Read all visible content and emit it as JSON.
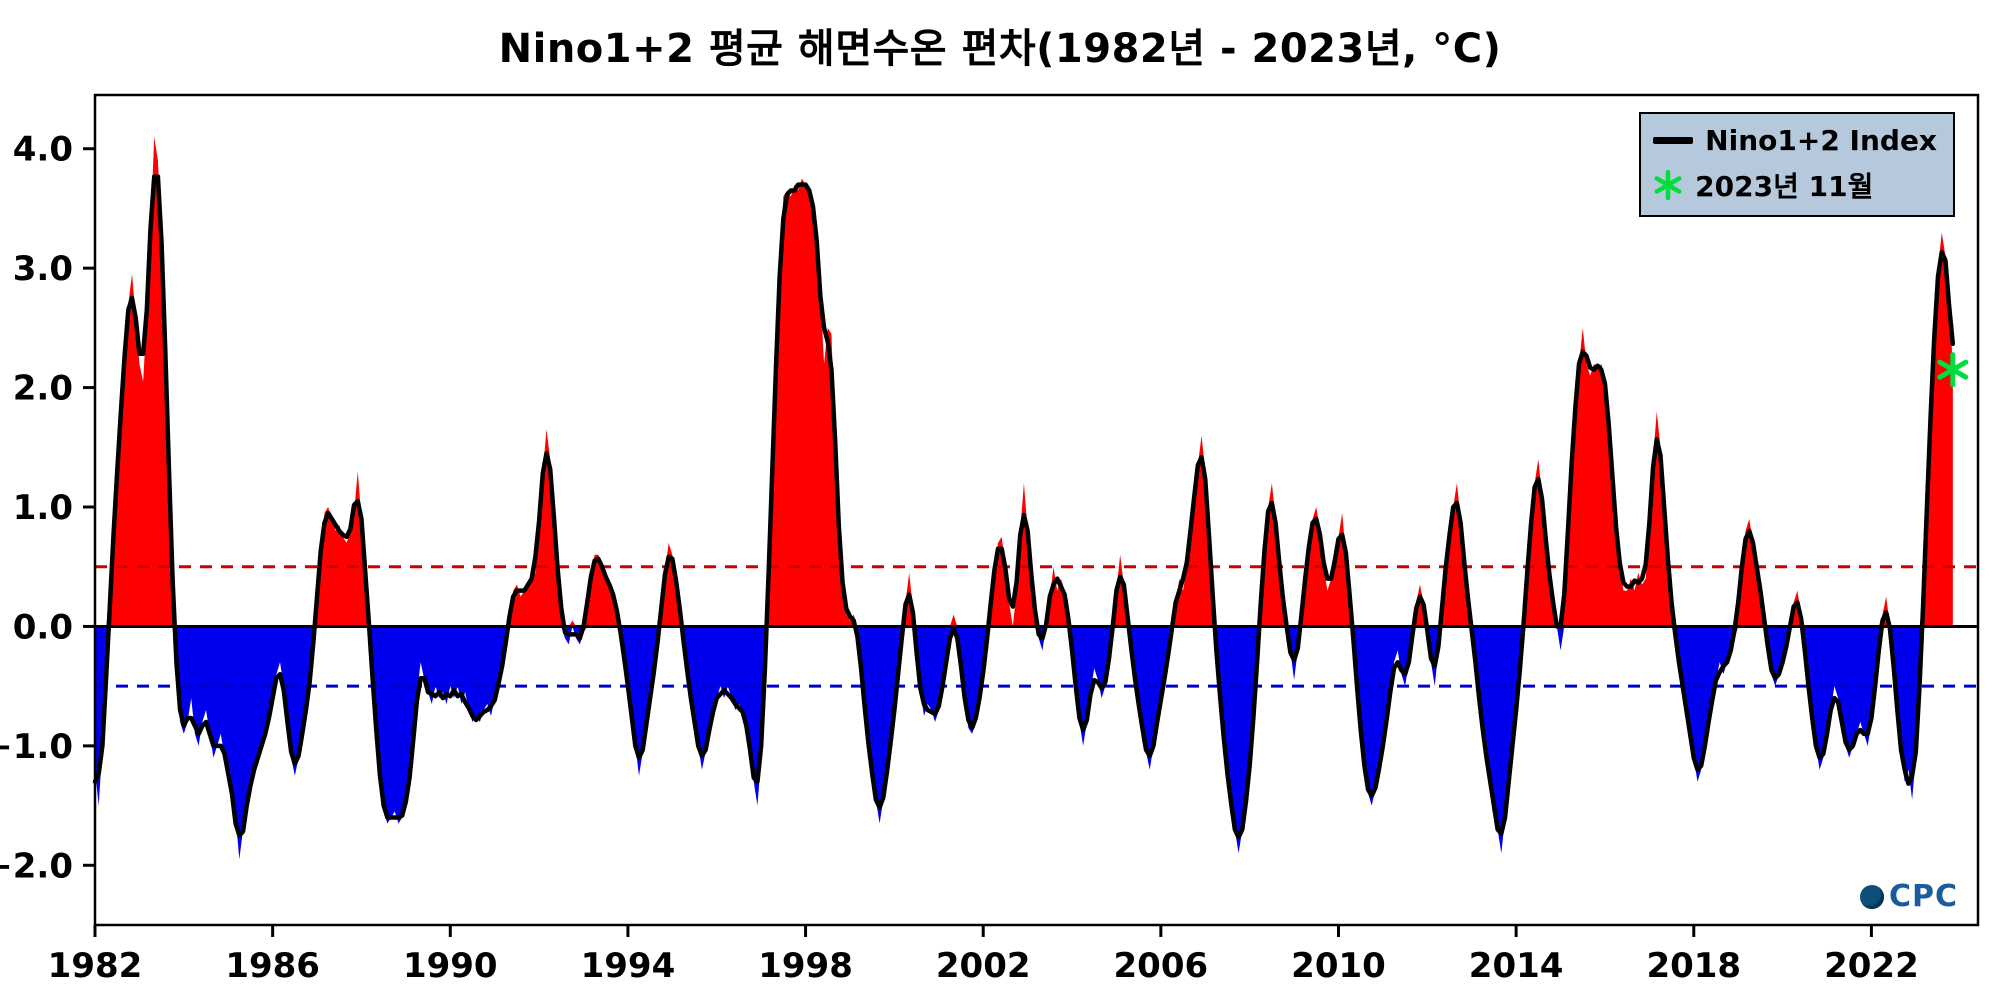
{
  "chart_data": {
    "type": "area",
    "title": "Nino1+2 평균 해면수온 편차(1982년 - 2023년, °C)",
    "xlabel": "",
    "ylabel": "",
    "x_start_year": 1982,
    "x_start_month": 1,
    "frequency": "monthly",
    "x_end": "2023-11",
    "xlim": [
      1982.0,
      2024.4
    ],
    "ylim": [
      -2.5,
      4.45
    ],
    "x_ticks": [
      1982,
      1986,
      1990,
      1994,
      1998,
      2002,
      2006,
      2010,
      2014,
      2018,
      2022
    ],
    "y_ticks": [
      -2.0,
      -1.0,
      0.0,
      1.0,
      2.0,
      3.0,
      4.0
    ],
    "grid": false,
    "legend_position": "top-right",
    "zero_line": 0.0,
    "thresholds": {
      "warm": 0.5,
      "cold": -0.5
    },
    "colors": {
      "positive_fill": "#ff0000",
      "negative_fill": "#0000ee",
      "line": "#000000",
      "warm_dash": "#cc0000",
      "cold_dash": "#0000cc",
      "marker": "#00dd3c",
      "legend_bg": "#b6c9dc"
    },
    "legend": [
      {
        "label": "Nino1+2 Index",
        "marker": "line",
        "color": "#000000"
      },
      {
        "label": "2023년 11월",
        "marker": "asterisk",
        "color": "#00dd3c"
      }
    ],
    "last_point": {
      "date": "2023-11",
      "value": 2.15
    },
    "values": [
      -1.2,
      -1.5,
      -1.0,
      -0.5,
      0.2,
      0.8,
      1.3,
      1.8,
      2.3,
      2.7,
      2.95,
      2.6,
      2.2,
      2.05,
      2.6,
      3.3,
      4.1,
      3.9,
      3.3,
      2.4,
      1.2,
      0.3,
      -0.4,
      -0.8,
      -0.9,
      -0.8,
      -0.6,
      -0.9,
      -1.0,
      -0.8,
      -0.7,
      -0.9,
      -1.1,
      -1.0,
      -0.9,
      -1.1,
      -1.2,
      -1.4,
      -1.6,
      -1.95,
      -1.7,
      -1.5,
      -1.3,
      -1.2,
      -1.1,
      -1.0,
      -0.9,
      -0.8,
      -0.6,
      -0.4,
      -0.3,
      -0.5,
      -0.8,
      -1.1,
      -1.25,
      -1.1,
      -0.9,
      -0.7,
      -0.5,
      -0.2,
      0.3,
      0.65,
      0.95,
      1.0,
      0.9,
      0.8,
      0.85,
      0.75,
      0.7,
      0.8,
      0.95,
      1.3,
      0.9,
      0.5,
      0.0,
      -0.4,
      -0.9,
      -1.3,
      -1.55,
      -1.65,
      -1.6,
      -1.55,
      -1.65,
      -1.6,
      -1.5,
      -1.3,
      -1.0,
      -0.55,
      -0.3,
      -0.45,
      -0.55,
      -0.65,
      -0.5,
      -0.6,
      -0.55,
      -0.65,
      -0.5,
      -0.6,
      -0.5,
      -0.65,
      -0.55,
      -0.7,
      -0.8,
      -0.75,
      -0.8,
      -0.7,
      -0.65,
      -0.75,
      -0.6,
      -0.5,
      -0.35,
      -0.15,
      0.1,
      0.3,
      0.35,
      0.25,
      0.3,
      0.35,
      0.4,
      0.45,
      0.9,
      1.3,
      1.65,
      1.4,
      0.9,
      0.45,
      0.1,
      -0.1,
      -0.15,
      0.05,
      -0.1,
      -0.15,
      -0.05,
      0.2,
      0.45,
      0.6,
      0.6,
      0.5,
      0.4,
      0.35,
      0.3,
      0.15,
      -0.05,
      -0.25,
      -0.5,
      -0.75,
      -1.0,
      -1.25,
      -1.05,
      -0.8,
      -0.6,
      -0.4,
      -0.15,
      0.15,
      0.45,
      0.7,
      0.6,
      0.4,
      0.15,
      -0.1,
      -0.4,
      -0.6,
      -0.8,
      -1.0,
      -1.2,
      -1.05,
      -0.85,
      -0.7,
      -0.6,
      -0.5,
      -0.6,
      -0.5,
      -0.6,
      -0.7,
      -0.65,
      -0.7,
      -0.8,
      -1.0,
      -1.3,
      -1.5,
      -1.1,
      -0.4,
      0.4,
      1.3,
      2.2,
      3.0,
      3.6,
      3.65,
      3.6,
      3.7,
      3.65,
      3.75,
      3.7,
      3.65,
      3.6,
      3.3,
      2.8,
      2.2,
      2.5,
      2.45,
      1.5,
      0.7,
      0.3,
      0.1,
      0.05,
      0.1,
      0.0,
      -0.35,
      -0.7,
      -1.0,
      -1.25,
      -1.45,
      -1.65,
      -1.45,
      -1.2,
      -1.0,
      -0.7,
      -0.4,
      -0.1,
      0.2,
      0.45,
      0.15,
      -0.25,
      -0.55,
      -0.75,
      -0.65,
      -0.7,
      -0.8,
      -0.7,
      -0.5,
      -0.3,
      -0.1,
      0.1,
      -0.05,
      -0.35,
      -0.6,
      -0.85,
      -0.9,
      -0.8,
      -0.6,
      -0.4,
      -0.15,
      0.2,
      0.5,
      0.7,
      0.75,
      0.5,
      0.2,
      0.0,
      0.3,
      0.8,
      1.2,
      0.8,
      0.4,
      0.1,
      -0.1,
      -0.2,
      0.0,
      0.25,
      0.5,
      0.3,
      0.4,
      0.3,
      0.1,
      -0.2,
      -0.5,
      -0.8,
      -1.0,
      -0.8,
      -0.55,
      -0.35,
      -0.45,
      -0.6,
      -0.5,
      -0.3,
      0.0,
      0.3,
      0.6,
      0.35,
      0.1,
      -0.2,
      -0.45,
      -0.65,
      -0.85,
      -1.05,
      -1.2,
      -1.0,
      -0.8,
      -0.6,
      -0.45,
      -0.25,
      0.0,
      0.2,
      0.4,
      0.3,
      0.5,
      0.8,
      1.1,
      1.35,
      1.6,
      1.3,
      0.8,
      0.2,
      -0.2,
      -0.6,
      -0.95,
      -1.25,
      -1.5,
      -1.7,
      -1.9,
      -1.7,
      -1.5,
      -1.2,
      -0.8,
      -0.3,
      0.2,
      0.7,
      1.0,
      1.2,
      0.9,
      0.5,
      0.2,
      0.0,
      -0.2,
      -0.45,
      -0.2,
      0.1,
      0.4,
      0.7,
      0.9,
      1.0,
      0.8,
      0.5,
      0.3,
      0.4,
      0.5,
      0.75,
      0.95,
      0.6,
      0.3,
      -0.1,
      -0.5,
      -0.9,
      -1.2,
      -1.4,
      -1.5,
      -1.35,
      -1.2,
      -1.0,
      -0.8,
      -0.55,
      -0.3,
      -0.2,
      -0.4,
      -0.5,
      -0.3,
      -0.1,
      0.2,
      0.35,
      0.2,
      0.0,
      -0.3,
      -0.5,
      -0.2,
      0.2,
      0.5,
      0.8,
      1.0,
      1.2,
      0.9,
      0.5,
      0.2,
      0.0,
      -0.3,
      -0.6,
      -0.9,
      -1.1,
      -1.3,
      -1.5,
      -1.7,
      -1.9,
      -1.6,
      -1.3,
      -1.0,
      -0.7,
      -0.4,
      0.0,
      0.45,
      0.9,
      1.2,
      1.4,
      1.1,
      0.7,
      0.4,
      0.2,
      0.0,
      -0.2,
      0.2,
      0.8,
      1.4,
      1.9,
      2.2,
      2.5,
      2.2,
      2.1,
      2.2,
      2.15,
      2.2,
      2.1,
      1.8,
      1.2,
      0.8,
      0.5,
      0.3,
      0.3,
      0.4,
      0.3,
      0.45,
      0.35,
      0.4,
      0.8,
      1.4,
      1.8,
      1.5,
      1.0,
      0.5,
      0.2,
      -0.1,
      -0.3,
      -0.5,
      -0.7,
      -0.9,
      -1.1,
      -1.3,
      -1.2,
      -1.0,
      -0.8,
      -0.6,
      -0.45,
      -0.3,
      -0.4,
      -0.3,
      -0.2,
      -0.1,
      0.2,
      0.5,
      0.8,
      0.9,
      0.7,
      0.5,
      0.3,
      0.1,
      -0.2,
      -0.4,
      -0.5,
      -0.4,
      -0.3,
      -0.2,
      0.0,
      0.2,
      0.3,
      0.1,
      -0.2,
      -0.5,
      -0.8,
      -1.0,
      -1.2,
      -1.1,
      -0.9,
      -0.7,
      -0.5,
      -0.6,
      -0.8,
      -1.0,
      -1.1,
      -1.0,
      -0.9,
      -0.8,
      -0.9,
      -1.0,
      -0.8,
      -0.5,
      -0.2,
      0.1,
      0.25,
      0.0,
      -0.3,
      -0.7,
      -1.1,
      -1.3,
      -1.2,
      -1.45,
      -1.1,
      -0.6,
      0.2,
      1.0,
      1.8,
      2.5,
      3.0,
      3.3,
      3.1,
      2.8,
      2.15
    ]
  },
  "footer": {
    "logo_text": "CPC"
  }
}
